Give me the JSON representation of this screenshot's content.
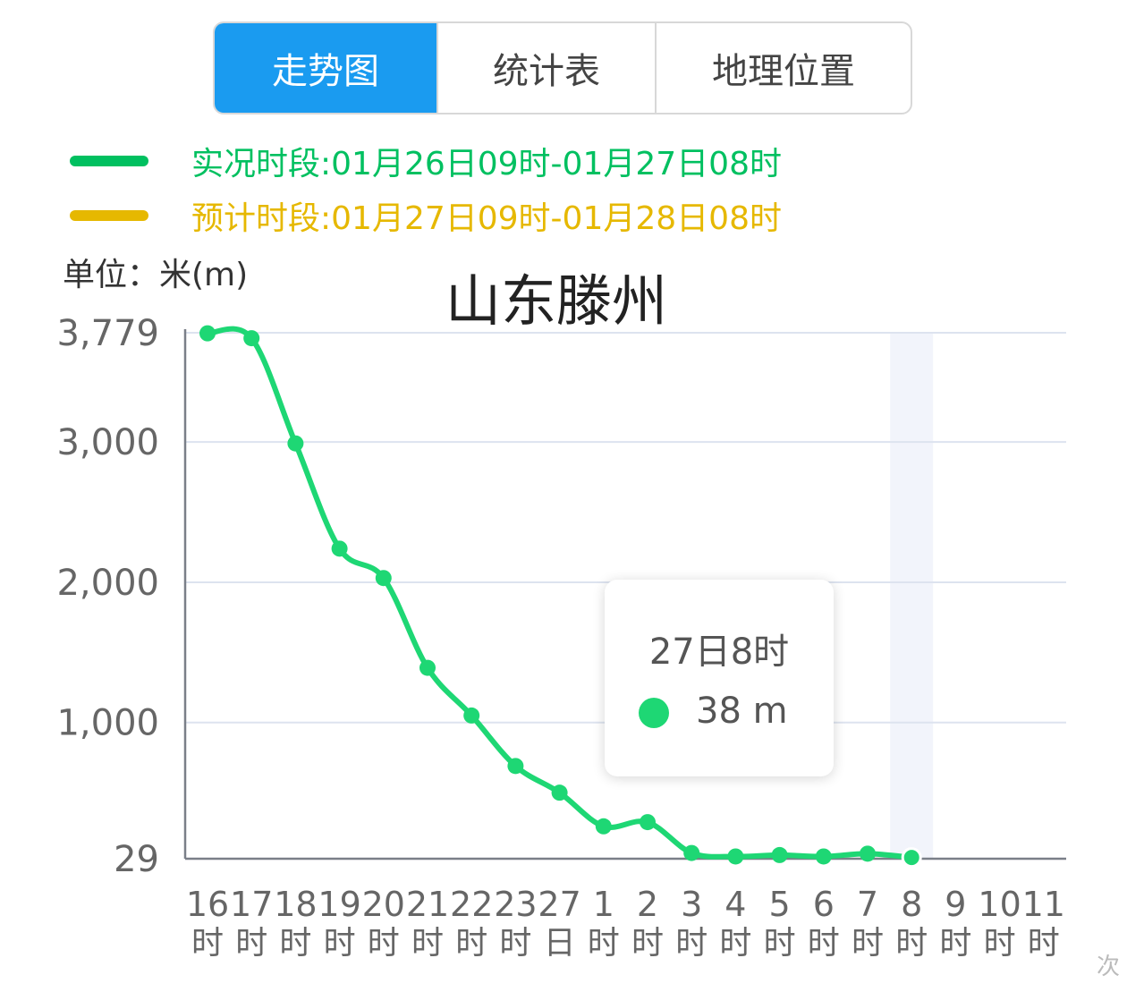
{
  "tabs": [
    {
      "label": "走势图",
      "active": true
    },
    {
      "label": "统计表",
      "active": false
    },
    {
      "label": "地理位置",
      "active": false
    }
  ],
  "legend": [
    {
      "text": "实况时段:01月26日09时-01月27日08时",
      "color": "#00c060"
    },
    {
      "text": "预计时段:01月27日09时-01月28日08时",
      "color": "#e6b800"
    }
  ],
  "colors": {
    "accent": "#1a9bf0",
    "line": "#1ed774",
    "highlight": "#f2f4fb"
  },
  "chart_data": {
    "type": "line",
    "title": "山东滕州",
    "ylabel": "单位：米(m)",
    "y_ticks": [
      29,
      1000,
      2000,
      3000,
      3779
    ],
    "y_tick_labels": [
      "29",
      "1,000",
      "2,000",
      "3,000",
      "3,779"
    ],
    "ylim": [
      29,
      3779
    ],
    "grid": true,
    "x_ticks": [
      [
        "16",
        "时"
      ],
      [
        "17",
        "时"
      ],
      [
        "18",
        "时"
      ],
      [
        "19",
        "时"
      ],
      [
        "20",
        "时"
      ],
      [
        "21",
        "时"
      ],
      [
        "22",
        "时"
      ],
      [
        "23",
        "时"
      ],
      [
        "27",
        "日"
      ],
      [
        "1",
        "时"
      ],
      [
        "2",
        "时"
      ],
      [
        "3",
        "时"
      ],
      [
        "4",
        "时"
      ],
      [
        "5",
        "时"
      ],
      [
        "6",
        "时"
      ],
      [
        "7",
        "时"
      ],
      [
        "8",
        "时"
      ],
      [
        "9",
        "时"
      ],
      [
        "10",
        "时"
      ],
      [
        "11",
        "时"
      ]
    ],
    "series": [
      {
        "values": [
          3775,
          3740,
          2990,
          2240,
          2030,
          1390,
          1050,
          690,
          500,
          260,
          290,
          70,
          45,
          55,
          45,
          65,
          38
        ]
      }
    ],
    "highlight_index": 16
  },
  "tooltip": {
    "title": "27日8时",
    "value": "38 m"
  },
  "watermark": "次"
}
